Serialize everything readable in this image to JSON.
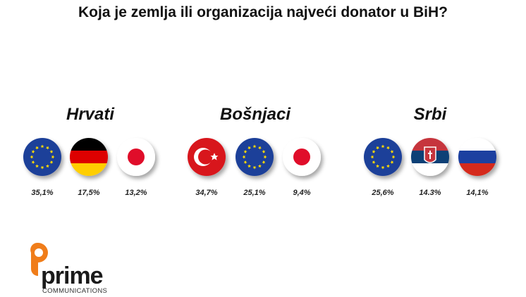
{
  "title": "Koja je zemlja ili organizacija najveći donator u BiH?",
  "groups": [
    {
      "name": "Hrvati",
      "values": [
        "35,1%",
        "17,5%",
        "13,2%"
      ]
    },
    {
      "name": "Bošnjaci",
      "values": [
        "34,7%",
        "25,1%",
        "9,4%"
      ]
    },
    {
      "name": "Srbi",
      "values": [
        "25,6%",
        "14.3%",
        "14,1%"
      ]
    }
  ],
  "logo": {
    "name": "prime",
    "tagline": "COMMUNICATIONS"
  }
}
